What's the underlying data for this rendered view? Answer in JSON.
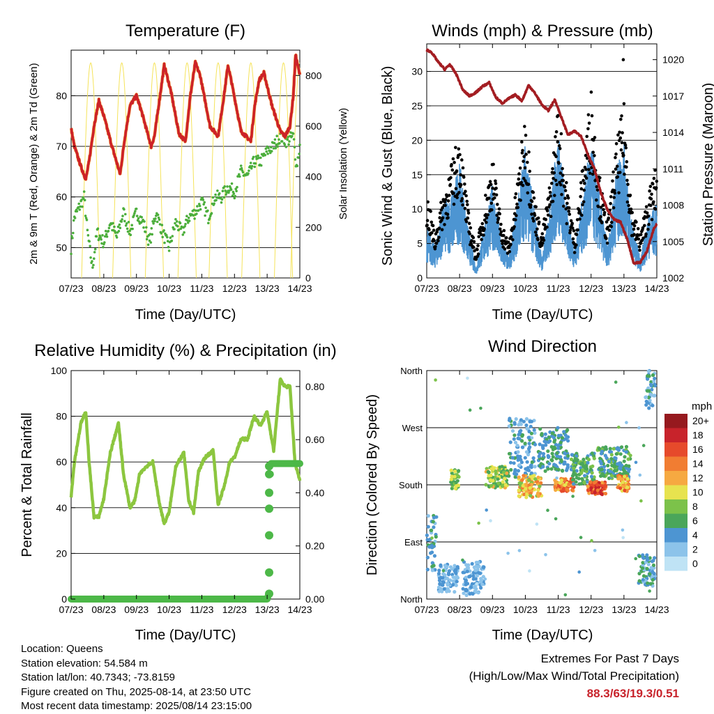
{
  "x_ticks": [
    "07/23",
    "08/23",
    "09/23",
    "10/23",
    "11/23",
    "12/23",
    "13/23",
    "14/23"
  ],
  "panels": {
    "temperature": {
      "title": "Temperature (F)",
      "xlabel": "Time (Day/UTC)",
      "ylabel_left": "2m & 9m T (Red, Orange) & 2m Td (Green)",
      "ylabel_right": "Solar Insolation (Yellow)",
      "yticks_left": [
        "50",
        "60",
        "70",
        "80"
      ],
      "yticks_right": [
        "0",
        "200",
        "400",
        "600",
        "800"
      ]
    },
    "winds": {
      "title": "Winds (mph) & Pressure (mb)",
      "xlabel": "Time (Day/UTC)",
      "ylabel_left": "Sonic Wind & Gust (Blue, Black)",
      "ylabel_right": "Station Pressure (Maroon)",
      "yticks_left": [
        "0",
        "5",
        "10",
        "15",
        "20",
        "25",
        "30"
      ],
      "yticks_right": [
        "1002",
        "1005",
        "1008",
        "1011",
        "1014",
        "1017",
        "1020"
      ]
    },
    "humidity": {
      "title": "Relative Humidity (%) & Precipitation (in)",
      "xlabel": "Time (Day/UTC)",
      "ylabel_left": "Percent & Total Rainfall",
      "yticks_left": [
        "0",
        "20",
        "40",
        "60",
        "80",
        "100"
      ],
      "yticks_right": [
        "0.00",
        "0.20",
        "0.40",
        "0.60",
        "0.80"
      ]
    },
    "wind_direction": {
      "title": "Wind Direction",
      "xlabel": "Time (Day/UTC)",
      "ylabel_left": "Direction (Colored By Speed)",
      "yticks_left": [
        "North",
        "East",
        "South",
        "West",
        "North"
      ],
      "colorbar_title": "mph",
      "colorbar_labels": [
        "0",
        "2",
        "4",
        "6",
        "8",
        "10",
        "12",
        "14",
        "16",
        "18",
        "20+"
      ]
    }
  },
  "info": {
    "location": "Location: Queens",
    "elevation": "Station elevation: 54.584 m",
    "latlon": "Station lat/lon: 40.7343; -73.8159",
    "created": "Figure created on Thu, 2025-08-14, at 23:50 UTC",
    "recent": "Most recent data timestamp: 2025/08/14 23:15:00"
  },
  "extremes": {
    "line1": "Extremes For Past 7 Days",
    "line2": "(High/Low/Max Wind/Total Precipitation)",
    "values": "88.3/63/19.3/0.51"
  },
  "colors": {
    "temp_2m": "#cc2229",
    "temp_9m": "#f29a30",
    "dewpoint": "#4cae3c",
    "solar": "#f5e35a",
    "wind": "#4d95d2",
    "gust": "#000000",
    "pressure": "#a31d22",
    "humidity": "#8cc63f",
    "precip": "#4db848",
    "speed_scale": [
      "#bfe3f5",
      "#8cc3ea",
      "#4d95d2",
      "#4aa65a",
      "#7cc24a",
      "#e7e34f",
      "#f6a941",
      "#f17d32",
      "#e64a2b",
      "#c8232b",
      "#96191e"
    ]
  },
  "chart_data": [
    {
      "type": "line",
      "title": "Temperature (F)",
      "xlabel": "Time (Day/UTC)",
      "ylabel": "2m & 9m T (Red, Orange) & 2m Td (Green)",
      "ylabel_right": "Solar Insolation (Yellow)",
      "ylim": [
        44,
        89
      ],
      "ylim_right": [
        0,
        900
      ],
      "x_range_days": [
        0,
        7
      ],
      "series": [
        {
          "name": "2m T",
          "axis": "left",
          "x": [
            0,
            0.1,
            0.3,
            0.45,
            0.55,
            0.7,
            0.85,
            1.0,
            1.25,
            1.5,
            1.65,
            1.8,
            2.0,
            2.15,
            2.45,
            2.55,
            2.7,
            2.85,
            3.05,
            3.3,
            3.5,
            3.65,
            3.8,
            3.95,
            4.25,
            4.5,
            4.7,
            4.8,
            4.9,
            5.2,
            5.5,
            5.62,
            5.75,
            5.9,
            6.15,
            6.4,
            6.55,
            6.7,
            6.8,
            6.87,
            7.0
          ],
          "y": [
            73.5,
            70,
            66,
            63.5,
            67,
            74,
            79,
            76,
            70,
            64.5,
            72,
            78,
            80,
            77,
            70,
            72,
            79,
            86,
            81,
            72.5,
            71,
            80,
            86.5,
            84,
            74,
            72,
            81,
            86,
            83,
            73,
            71,
            78,
            83,
            84.5,
            78,
            73,
            72,
            74,
            80,
            88,
            84
          ]
        },
        {
          "name": "2m Td",
          "axis": "left",
          "x": [
            0,
            0.1,
            0.25,
            0.4,
            0.5,
            0.65,
            0.8,
            1.0,
            1.2,
            1.4,
            1.6,
            1.8,
            2.0,
            2.2,
            2.4,
            2.6,
            2.8,
            3.0,
            3.2,
            3.4,
            3.6,
            3.8,
            4.0,
            4.2,
            4.4,
            4.6,
            4.8,
            5.0,
            5.2,
            5.4,
            5.6,
            5.8,
            6.0,
            6.2,
            6.4,
            6.6,
            6.8,
            6.9,
            7.0
          ],
          "y": [
            50,
            56,
            58,
            60,
            53,
            46,
            53,
            51,
            55,
            52,
            57,
            53,
            57,
            55,
            51,
            57,
            53,
            50,
            55,
            53,
            56,
            57,
            59,
            56,
            60,
            60,
            62,
            61,
            65,
            64,
            67,
            67,
            69,
            70,
            72,
            71,
            72,
            66,
            70
          ]
        },
        {
          "name": "Solar Insolation",
          "axis": "right",
          "peaks_x": [
            0.6,
            1.55,
            2.55,
            3.55,
            4.5,
            5.5,
            6.5,
            7.0
          ],
          "peak_values": [
            850,
            850,
            850,
            850,
            850,
            850,
            850,
            850
          ]
        }
      ]
    },
    {
      "type": "line",
      "title": "Winds (mph) & Pressure (mb)",
      "xlabel": "Time (Day/UTC)",
      "ylabel": "Sonic Wind & Gust (Blue, Black)",
      "ylabel_right": "Station Pressure (Maroon)",
      "ylim": [
        0,
        34
      ],
      "ylim_right": [
        1002,
        1021.3
      ],
      "x_range_days": [
        0,
        7
      ],
      "series": [
        {
          "name": "Sonic Wind",
          "axis": "left",
          "x": [
            0,
            0.25,
            0.5,
            0.75,
            1.0,
            1.25,
            1.5,
            1.75,
            2.0,
            2.25,
            2.5,
            2.75,
            3.0,
            3.25,
            3.5,
            3.75,
            4.0,
            4.25,
            4.5,
            4.75,
            5.0,
            5.25,
            5.5,
            5.75,
            6.0,
            6.25,
            6.5,
            6.75,
            7.0
          ],
          "y": [
            5,
            3,
            7,
            8,
            11,
            5,
            1,
            5,
            9,
            4,
            2,
            7,
            13,
            7,
            2,
            7,
            14,
            7,
            3,
            8,
            13,
            8,
            3,
            10,
            13,
            5,
            2,
            6,
            7
          ]
        },
        {
          "name": "Gust",
          "axis": "left",
          "x": [
            0,
            0.25,
            0.5,
            0.75,
            1.0,
            1.25,
            1.5,
            1.75,
            2.0,
            2.25,
            2.5,
            2.75,
            3.0,
            3.25,
            3.5,
            3.75,
            4.0,
            4.25,
            4.5,
            4.75,
            5.0,
            5.25,
            5.5,
            5.75,
            6.0,
            6.25,
            6.5,
            6.75,
            7.0
          ],
          "y": [
            10,
            5,
            10,
            13,
            17,
            8,
            3,
            9,
            14,
            7,
            4,
            11,
            19,
            10,
            5,
            11,
            20,
            11,
            5,
            13,
            22,
            12,
            6,
            15,
            20,
            8,
            5,
            10,
            13
          ]
        },
        {
          "name": "Station Pressure",
          "axis": "right",
          "x": [
            0,
            0.15,
            0.35,
            0.55,
            0.7,
            0.9,
            1.1,
            1.3,
            1.5,
            1.7,
            1.9,
            2.1,
            2.3,
            2.5,
            2.7,
            2.9,
            3.1,
            3.3,
            3.5,
            3.7,
            3.9,
            4.1,
            4.3,
            4.5,
            4.7,
            4.9,
            5.1,
            5.3,
            5.5,
            5.7,
            5.9,
            6.1,
            6.3,
            6.5,
            6.7,
            6.9,
            7.0
          ],
          "y": [
            1020.8,
            1020.6,
            1019.8,
            1019.2,
            1019.6,
            1018.8,
            1017.5,
            1017.0,
            1017.3,
            1017.8,
            1018.1,
            1016.9,
            1016.4,
            1016.8,
            1017.1,
            1016.6,
            1017.9,
            1017.2,
            1016.3,
            1015.8,
            1016.7,
            1015.2,
            1013.8,
            1014.1,
            1013.7,
            1012.2,
            1011.0,
            1009.0,
            1007.6,
            1006.8,
            1006.6,
            1005.2,
            1003.2,
            1003.3,
            1004.2,
            1006.0,
            1006.5
          ]
        }
      ]
    },
    {
      "type": "line",
      "title": "Relative Humidity (%) & Precipitation (in)",
      "xlabel": "Time (Day/UTC)",
      "ylabel": "Percent & Total Rainfall",
      "ylim": [
        0,
        100
      ],
      "ylim_right": [
        0,
        0.86
      ],
      "x_range_days": [
        0,
        7
      ],
      "series": [
        {
          "name": "Relative Humidity",
          "axis": "left",
          "x": [
            0,
            0.1,
            0.3,
            0.45,
            0.55,
            0.7,
            0.85,
            1.0,
            1.2,
            1.45,
            1.6,
            1.8,
            1.95,
            2.1,
            2.3,
            2.5,
            2.7,
            2.85,
            3.0,
            3.2,
            3.45,
            3.6,
            3.75,
            3.9,
            4.1,
            4.35,
            4.5,
            4.7,
            4.85,
            5.0,
            5.2,
            5.4,
            5.6,
            5.8,
            6.0,
            6.2,
            6.4,
            6.55,
            6.7,
            6.85,
            7.0
          ],
          "y": [
            45,
            60,
            77,
            82,
            60,
            36,
            36,
            44,
            64,
            77,
            55,
            40,
            43,
            55,
            58,
            60,
            42,
            33,
            38,
            58,
            64,
            43,
            38,
            56,
            62,
            65,
            41,
            50,
            60,
            62,
            70,
            70,
            80,
            76,
            82,
            65,
            96,
            93,
            93,
            60,
            52
          ]
        },
        {
          "name": "Total Rainfall",
          "axis": "right",
          "x": [
            0,
            6.0,
            6.05,
            6.06,
            6.07,
            6.08,
            6.09,
            6.1,
            6.11,
            6.12,
            7.0
          ],
          "y": [
            0,
            0,
            0.02,
            0.1,
            0.24,
            0.34,
            0.4,
            0.47,
            0.5,
            0.51,
            0.51
          ]
        }
      ]
    },
    {
      "type": "scatter",
      "title": "Wind Direction",
      "xlabel": "Time (Day/UTC)",
      "ylabel": "Direction (Colored By Speed)",
      "ylim_degrees": [
        0,
        360
      ],
      "y_ticks": [
        "North",
        "East",
        "South",
        "West",
        "North"
      ],
      "color_scale_mph": [
        0,
        2,
        4,
        6,
        8,
        10,
        12,
        14,
        16,
        18,
        20
      ],
      "x_range_days": [
        0,
        7
      ],
      "clusters": [
        {
          "x": [
            0.0,
            0.3
          ],
          "dir": [
            40,
            140
          ],
          "speed": [
            2,
            7
          ]
        },
        {
          "x": [
            0.35,
            0.95
          ],
          "dir": [
            10,
            55
          ],
          "speed": [
            1,
            5
          ]
        },
        {
          "x": [
            0.7,
            0.98
          ],
          "dir": [
            170,
            205
          ],
          "speed": [
            5,
            10
          ]
        },
        {
          "x": [
            1.1,
            1.75
          ],
          "dir": [
            5,
            60
          ],
          "speed": [
            1,
            5
          ]
        },
        {
          "x": [
            1.8,
            2.5
          ],
          "dir": [
            175,
            210
          ],
          "speed": [
            5,
            12
          ]
        },
        {
          "x": [
            2.5,
            3.3
          ],
          "dir": [
            190,
            285
          ],
          "speed": [
            2,
            6
          ]
        },
        {
          "x": [
            2.8,
            3.5
          ],
          "dir": [
            160,
            195
          ],
          "speed": [
            8,
            15
          ]
        },
        {
          "x": [
            3.4,
            4.3
          ],
          "dir": [
            200,
            270
          ],
          "speed": [
            3,
            7
          ]
        },
        {
          "x": [
            3.9,
            4.5
          ],
          "dir": [
            170,
            190
          ],
          "speed": [
            10,
            17
          ]
        },
        {
          "x": [
            4.4,
            5.1
          ],
          "dir": [
            180,
            230
          ],
          "speed": [
            4,
            8
          ]
        },
        {
          "x": [
            4.9,
            5.45
          ],
          "dir": [
            165,
            185
          ],
          "speed": [
            12,
            19
          ]
        },
        {
          "x": [
            5.2,
            6.2
          ],
          "dir": [
            190,
            240
          ],
          "speed": [
            3,
            8
          ]
        },
        {
          "x": [
            5.8,
            6.15
          ],
          "dir": [
            170,
            195
          ],
          "speed": [
            10,
            16
          ]
        },
        {
          "x": [
            6.45,
            6.95
          ],
          "dir": [
            20,
            70
          ],
          "speed": [
            2,
            7
          ]
        },
        {
          "x": [
            6.65,
            6.95
          ],
          "dir": [
            300,
            360
          ],
          "speed": [
            2,
            6
          ]
        }
      ]
    }
  ]
}
